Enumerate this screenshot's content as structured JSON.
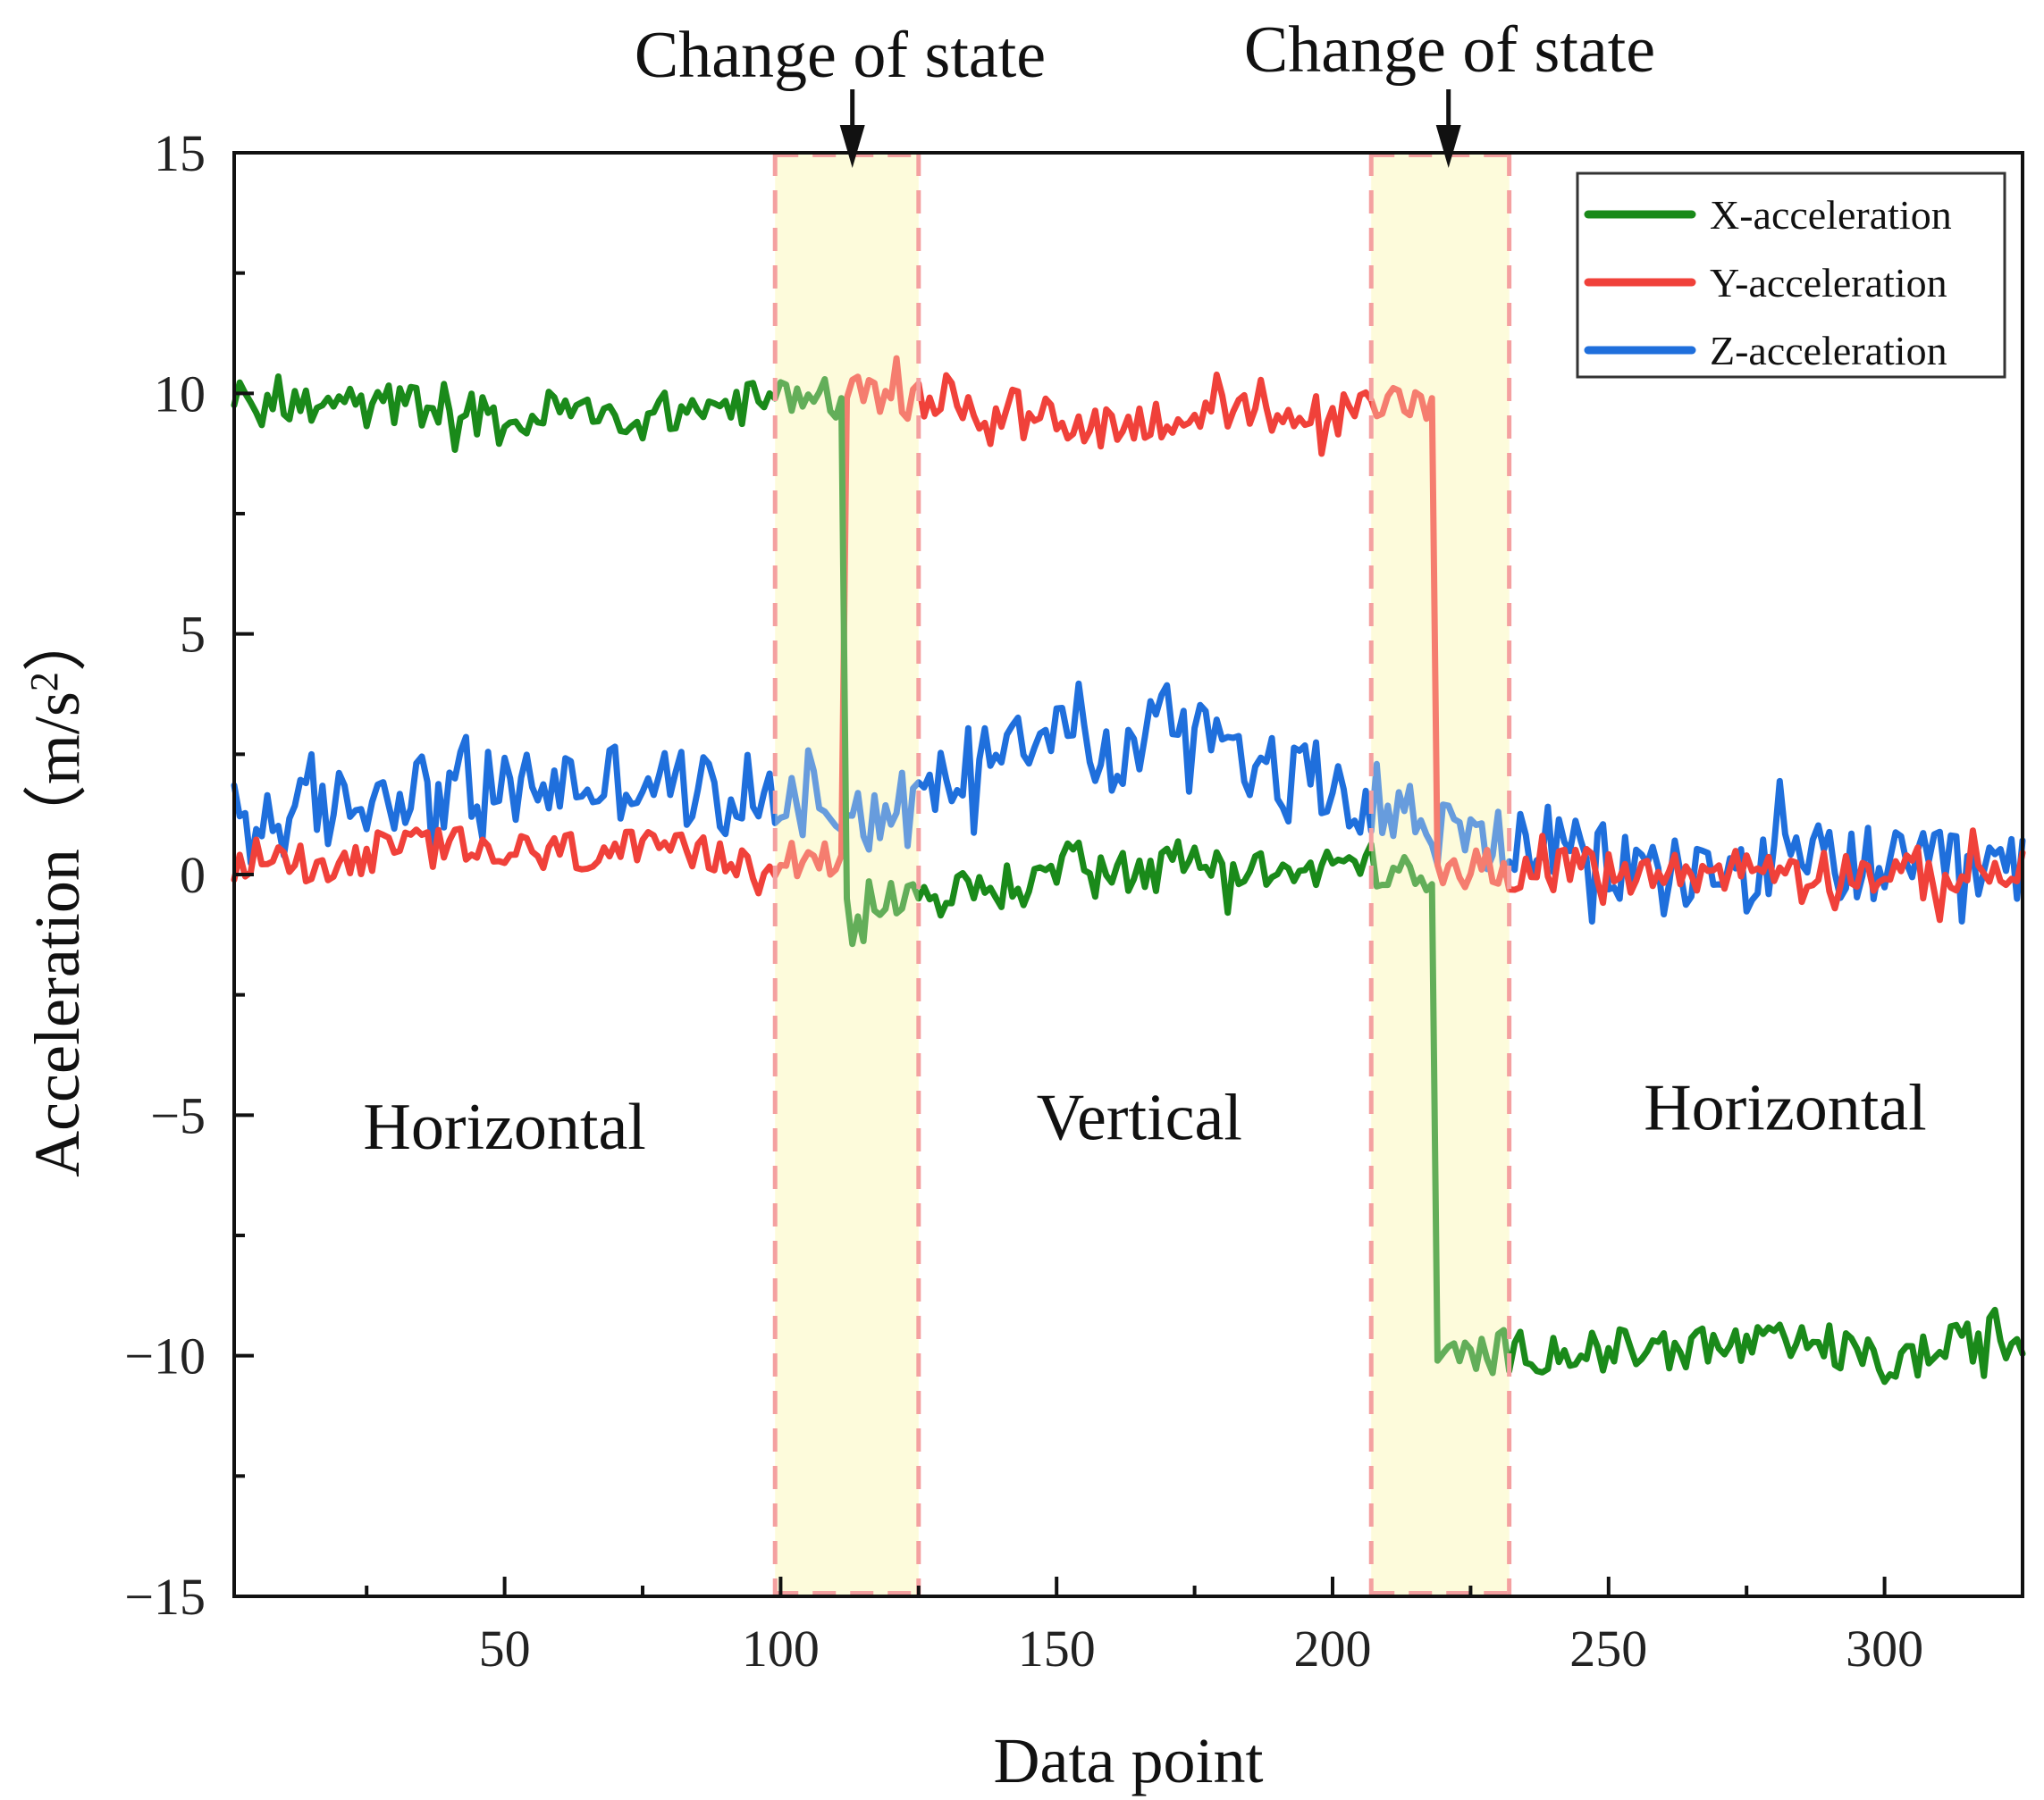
{
  "chart_data": {
    "type": "line",
    "title": "",
    "xlabel": "Data point",
    "ylabel": "Acceleration（m/s",
    "ylabel_sup": "2",
    "ylabel_close": "）",
    "xlim": [
      1,
      325
    ],
    "ylim": [
      -15,
      15
    ],
    "xticks": [
      50,
      100,
      150,
      200,
      250,
      300
    ],
    "yticks": [
      -15,
      -10,
      -5,
      0,
      5,
      10,
      15
    ],
    "ytick_labels": [
      "−15",
      "−10",
      "−5",
      "0",
      "5",
      "10",
      "15"
    ],
    "grid": false,
    "legend_position": "top-right",
    "series": [
      {
        "name": "X-acceleration",
        "color": "#1a8a1a"
      },
      {
        "name": "Y-acceleration",
        "color": "#f0413a"
      },
      {
        "name": "Z-acceleration",
        "color": "#1f6fdc"
      }
    ],
    "anchors": {
      "x": [
        [
          1,
          9.8
        ],
        [
          20,
          9.7
        ],
        [
          40,
          9.8
        ],
        [
          50,
          9.3
        ],
        [
          60,
          9.7
        ],
        [
          70,
          9.4
        ],
        [
          85,
          9.7
        ],
        [
          95,
          9.8
        ],
        [
          100,
          9.9
        ],
        [
          105,
          10.0
        ],
        [
          111,
          9.9
        ],
        [
          111.5,
          -0.5
        ],
        [
          120,
          -0.5
        ],
        [
          130,
          -0.4
        ],
        [
          145,
          -0.2
        ],
        [
          155,
          0.5
        ],
        [
          165,
          0.0
        ],
        [
          175,
          0.3
        ],
        [
          185,
          0.1
        ],
        [
          195,
          0.0
        ],
        [
          205,
          0.3
        ],
        [
          212,
          0.0
        ],
        [
          218,
          -0.2
        ],
        [
          219,
          -10.1
        ],
        [
          230,
          -9.9
        ],
        [
          250,
          -9.9
        ],
        [
          270,
          -9.8
        ],
        [
          290,
          -9.8
        ],
        [
          300,
          -10.2
        ],
        [
          310,
          -9.9
        ],
        [
          318,
          -9.6
        ],
        [
          325,
          -9.8
        ]
      ],
      "y": [
        [
          1,
          0.3
        ],
        [
          20,
          0.3
        ],
        [
          35,
          0.6
        ],
        [
          50,
          0.4
        ],
        [
          70,
          0.5
        ],
        [
          90,
          0.3
        ],
        [
          100,
          0.4
        ],
        [
          111,
          0.4
        ],
        [
          112,
          9.9
        ],
        [
          120,
          9.9
        ],
        [
          130,
          9.8
        ],
        [
          145,
          9.6
        ],
        [
          160,
          9.3
        ],
        [
          175,
          9.6
        ],
        [
          190,
          9.5
        ],
        [
          205,
          9.6
        ],
        [
          212,
          9.9
        ],
        [
          218,
          9.9
        ],
        [
          219,
          0.2
        ],
        [
          235,
          0.1
        ],
        [
          260,
          0.0
        ],
        [
          280,
          0.2
        ],
        [
          300,
          0.0
        ],
        [
          310,
          -0.1
        ],
        [
          325,
          0.1
        ]
      ],
      "z": [
        [
          1,
          1.1
        ],
        [
          15,
          1.2
        ],
        [
          30,
          1.8
        ],
        [
          45,
          1.7
        ],
        [
          60,
          1.9
        ],
        [
          75,
          2.0
        ],
        [
          90,
          1.6
        ],
        [
          100,
          1.7
        ],
        [
          110,
          1.5
        ],
        [
          120,
          1.2
        ],
        [
          130,
          1.9
        ],
        [
          140,
          3.0
        ],
        [
          150,
          3.2
        ],
        [
          160,
          2.2
        ],
        [
          170,
          3.3
        ],
        [
          180,
          3.1
        ],
        [
          190,
          1.9
        ],
        [
          200,
          2.0
        ],
        [
          210,
          1.4
        ],
        [
          218,
          1.0
        ],
        [
          225,
          0.6
        ],
        [
          235,
          0.7
        ],
        [
          250,
          0.2
        ],
        [
          270,
          0.0
        ],
        [
          290,
          0.3
        ],
        [
          305,
          0.0
        ],
        [
          315,
          0.1
        ],
        [
          325,
          0.0
        ]
      ]
    },
    "noise": {
      "x": 0.45,
      "y": 0.45,
      "z": 0.85
    },
    "highlight_bands": [
      [
        99,
        125
      ],
      [
        207,
        232
      ]
    ],
    "annotations": [
      {
        "text": "Change of state",
        "x": 113
      },
      {
        "text": "Change of state",
        "x": 221
      }
    ],
    "region_labels": [
      {
        "text": "Horizontal",
        "x": 50,
        "y": -5.7
      },
      {
        "text": "Vertical",
        "x": 165,
        "y": -5.5
      },
      {
        "text": "Horizontal",
        "x": 282,
        "y": -5.3
      }
    ]
  }
}
